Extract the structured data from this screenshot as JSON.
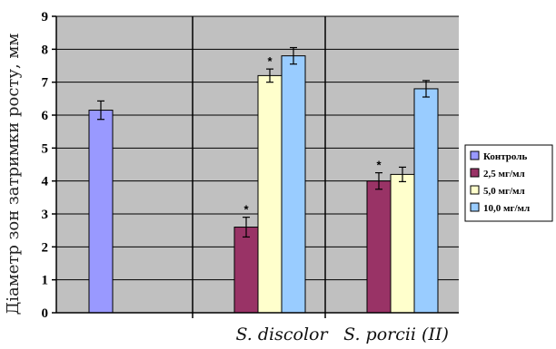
{
  "chart_data": {
    "type": "bar",
    "ylabel": "Діаметр зон затримки росту, мм",
    "xlabel": "",
    "ylim": [
      0,
      9
    ],
    "yticks": [
      0,
      1,
      2,
      3,
      4,
      5,
      6,
      7,
      8,
      9
    ],
    "grid": true,
    "legend_position": "right",
    "categories": [
      "",
      "S. discolor",
      "S. porcii (II)"
    ],
    "series": [
      {
        "name": "Контроль",
        "color": "#9999ff",
        "values": [
          6.15,
          null,
          null
        ],
        "errors": [
          0.28,
          null,
          null
        ]
      },
      {
        "name": "2,5 мг/мл",
        "color": "#993366",
        "values": [
          null,
          2.6,
          4.0
        ],
        "errors": [
          null,
          0.3,
          0.25
        ]
      },
      {
        "name": "5,0 мг/мл",
        "color": "#ffffcc",
        "values": [
          null,
          7.2,
          4.2
        ],
        "errors": [
          null,
          0.2,
          0.22
        ]
      },
      {
        "name": "10,0 мг/мл",
        "color": "#99ccff",
        "values": [
          null,
          7.8,
          6.8
        ],
        "errors": [
          null,
          0.25,
          0.25
        ]
      }
    ],
    "annotations": [
      {
        "text": "*",
        "category": 1,
        "series": 1
      },
      {
        "text": "*",
        "category": 1,
        "series": 2
      },
      {
        "text": "*",
        "category": 2,
        "series": 1
      }
    ]
  }
}
